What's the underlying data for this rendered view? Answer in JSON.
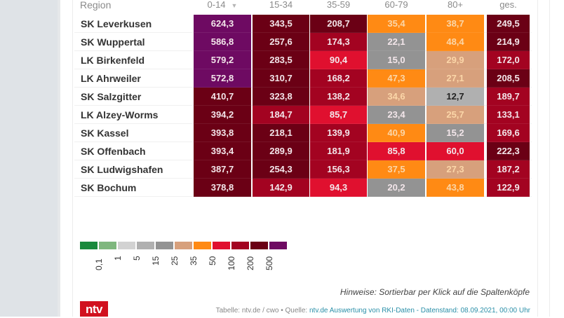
{
  "table": {
    "headers": {
      "region": "Region",
      "columns": [
        "0-14",
        "15-34",
        "35-59",
        "60-79",
        "80+",
        "ges."
      ],
      "sorted_column_icon": "sort-down-icon",
      "sort_glyph": "▼"
    },
    "rows": [
      {
        "region": "SK Leverkusen",
        "values": [
          "624,3",
          "343,5",
          "208,7",
          "35,4",
          "38,7",
          "249,5"
        ]
      },
      {
        "region": "SK Wuppertal",
        "values": [
          "586,8",
          "257,6",
          "174,3",
          "22,1",
          "48,4",
          "214,9"
        ]
      },
      {
        "region": "LK Birkenfeld",
        "values": [
          "579,2",
          "283,5",
          "90,4",
          "15,0",
          "29,9",
          "172,0"
        ]
      },
      {
        "region": "LK Ahrweiler",
        "values": [
          "572,8",
          "310,7",
          "168,2",
          "47,3",
          "27,1",
          "208,5"
        ]
      },
      {
        "region": "SK Salzgitter",
        "values": [
          "410,7",
          "323,8",
          "138,2",
          "34,6",
          "12,7",
          "189,7"
        ]
      },
      {
        "region": "LK Alzey-Worms",
        "values": [
          "394,2",
          "184,7",
          "85,7",
          "23,4",
          "25,7",
          "133,1"
        ]
      },
      {
        "region": "SK Kassel",
        "values": [
          "393,8",
          "218,1",
          "139,9",
          "40,9",
          "15,2",
          "169,6"
        ]
      },
      {
        "region": "SK Offenbach",
        "values": [
          "393,4",
          "289,9",
          "181,9",
          "85,8",
          "60,0",
          "222,3"
        ]
      },
      {
        "region": "SK Ludwigshafen",
        "values": [
          "387,7",
          "254,3",
          "156,3",
          "37,5",
          "27,3",
          "187,2"
        ]
      },
      {
        "region": "SK Bochum",
        "values": [
          "378,8",
          "142,9",
          "94,3",
          "20,2",
          "43,8",
          "122,9"
        ]
      }
    ]
  },
  "legend": {
    "colors": [
      "#1a8a3c",
      "#7fb77e",
      "#d2d2d2",
      "#b0b0b0",
      "#939393",
      "#d7a07c",
      "#ff8a14",
      "#e0102f",
      "#a30321",
      "#6b0015",
      "#6e0a62"
    ],
    "labels": [
      "0,1",
      "1",
      "5",
      "15",
      "25",
      "35",
      "50",
      "100",
      "200",
      "500"
    ]
  },
  "hint": "Hinweise: Sortierbar per Klick auf die Spaltenköpfe",
  "footer": {
    "prefix": "Tabelle: ntv.de / cwo • Quelle: ",
    "link": "ntv.de Auswertung von RKI-Daten - Datenstand: 08.09.2021, 00:00 Uhr"
  },
  "logo": "ntv"
}
